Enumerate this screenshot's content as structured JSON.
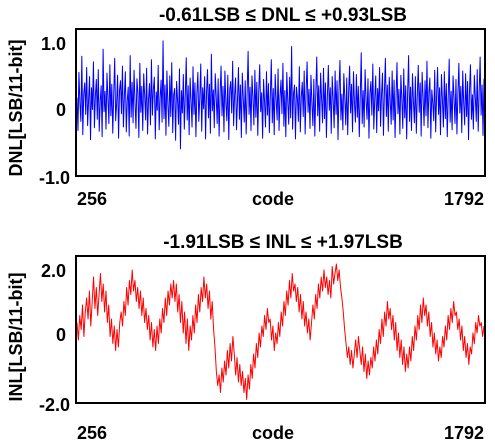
{
  "chart_data": [
    {
      "type": "line",
      "title": "-0.61LSB ≤ DNL ≤ +0.93LSB",
      "xlabel": "code",
      "ylabel": "DNL[LSB/11-bit]",
      "xlim": [
        256,
        1792
      ],
      "ylim": [
        -1.0,
        1.1
      ],
      "x_tick_labels": [
        "256",
        "1792"
      ],
      "y_tick_labels": [
        "1.0",
        "0",
        "-1.0"
      ],
      "y_ticks": [
        1.0,
        0,
        -1.0
      ],
      "grid": false,
      "series": [
        {
          "color": "#0000ff",
          "x_start": 256,
          "x_end": 1792,
          "values": [
            0.12,
            -0.35,
            0.48,
            0.05,
            -0.22,
            0.71,
            -0.41,
            0.18,
            0.33,
            -0.12,
            0.55,
            -0.28,
            0.09,
            0.42,
            -0.48,
            0.26,
            -0.05,
            0.63,
            -0.31,
            0.14,
            0.38,
            -0.19,
            0.52,
            -0.36,
            0.07,
            0.29,
            -0.44,
            0.81,
            -0.08,
            0.21,
            -0.33,
            0.47,
            0.11,
            -0.25,
            0.59,
            -0.14,
            0.31,
            -0.39,
            0.17,
            0.68,
            -0.21,
            0.04,
            0.44,
            -0.46,
            0.23,
            0.36,
            -0.11,
            0.57,
            -0.3,
            0.13,
            0.49,
            -0.37,
            0.08,
            0.27,
            -0.43,
            0.72,
            -0.16,
            0.34,
            -0.24,
            0.51,
            0.06,
            -0.32,
            0.39,
            0.19,
            -0.45,
            0.61,
            -0.09,
            0.28,
            -0.35,
            0.46,
            0.15,
            -0.2,
            0.54,
            -0.4,
            0.1,
            0.32,
            -0.27,
            0.66,
            -0.13,
            0.24,
            0.41,
            -0.47,
            0.2,
            -0.06,
            0.58,
            -0.34,
            0.12,
            0.37,
            -0.23,
            0.93,
            -0.18,
            0.3,
            -0.42,
            0.5,
            0.03,
            -0.29,
            0.43,
            -0.15,
            0.62,
            -0.38,
            0.16,
            0.25,
            -0.49,
            0.35,
            0.09,
            -0.26,
            0.53,
            -0.61,
            0.22,
            -0.1,
            0.45,
            -0.33,
            0.14,
            0.69,
            -0.2,
            0.29,
            -0.41,
            0.4,
            0.07,
            -0.3,
            0.56,
            -0.12,
            0.33,
            -0.44,
            0.18,
            0.48,
            -0.22,
            0.11,
            0.6,
            -0.36,
            0.26,
            -0.04,
            0.42,
            -0.47,
            0.2,
            0.52,
            -0.17,
            0.31,
            -0.39,
            0.74,
            -0.07,
            0.23,
            -0.31,
            0.46,
            0.13,
            -0.25,
            0.39,
            -0.43,
            0.17,
            0.57,
            -0.14,
            0.28,
            -0.37,
            0.5,
            0.05,
            -0.21,
            0.44,
            -0.48,
            0.24,
            0.35,
            -0.1,
            0.64,
            -0.28,
            0.15,
            0.4,
            -0.34,
            0.08,
            0.55,
            -0.19,
            0.3,
            -0.45,
            0.47,
            0.1,
            -0.23,
            0.36,
            -0.4,
            0.2,
            0.78,
            -0.12,
            0.27,
            -0.35,
            0.43,
            0.12,
            -0.27,
            0.51,
            -0.16,
            0.34,
            -0.42,
            0.21,
            0.59,
            -0.08,
            0.19,
            -0.46,
            0.38,
            0.06,
            -0.3,
            0.49,
            -0.13,
            0.32,
            -0.38,
            0.16,
            0.66,
            -0.24,
            0.25,
            -0.41,
            0.45,
            0.09,
            -0.2,
            0.53,
            -0.35,
            0.14,
            0.37,
            -0.11,
            0.61,
            -0.29,
            0.22,
            -0.44,
            0.48,
            0.07,
            -0.26,
            0.41,
            -0.17,
            0.85,
            -0.33,
            0.18,
            0.3,
            -0.47,
            0.27,
            0.11,
            -0.22,
            0.56,
            -0.37,
            0.13,
            0.34,
            -0.15,
            0.5,
            -0.4,
            0.21,
            0.63,
            -0.09,
            0.24,
            -0.32,
            0.44,
            0.04,
            -0.28,
            0.38,
            -0.43,
            0.19,
            0.7,
            -0.14,
            0.29,
            -0.36,
            0.47,
            0.1,
            -0.24,
            0.54,
            -0.18,
            0.33,
            -0.45,
            0.15,
            0.58,
            -0.06,
            0.26,
            -0.39,
            0.42,
            0.08,
            -0.31,
            0.5,
            -0.12,
            0.36,
            -0.48,
            0.23,
            0.65,
            -0.2,
            0.17,
            -0.34,
            0.46,
            0.12,
            -0.27,
            0.4,
            -0.41,
            0.2,
            0.57,
            -0.1,
            0.31,
            -0.37,
            0.49,
            0.05,
            -0.23,
            0.45,
            -0.16,
            0.28,
            -0.44,
            0.14,
            0.76,
            -0.25,
            0.22,
            -0.3,
            0.52,
            0.09,
            -0.19,
            0.39,
            -0.46,
            0.18,
            0.35,
            -0.13,
            0.6,
            -0.33,
            0.11,
            0.43,
            -0.38,
            0.25,
            -0.07,
            0.55,
            -0.29,
            0.16,
            0.47,
            -0.42,
            0.21,
            0.68,
            -0.15,
            0.3,
            -0.36,
            0.41,
            0.07,
            -0.26,
            0.5,
            -0.2,
            0.37,
            -0.45,
            0.13,
            0.62,
            -0.11,
            0.24,
            -0.4,
            0.44,
            0.1,
            -0.32,
            0.53,
            -0.17,
            0.29,
            -0.47,
            0.19,
            0.72,
            -0.22,
            0.27,
            -0.35,
            0.46,
            0.06,
            -0.24,
            0.42,
            -0.39,
            0.15,
            0.58,
            -0.09,
            0.33,
            -0.43,
            0.48,
            0.12,
            -0.28,
            0.36,
            -0.14,
            0.64,
            -0.31,
            0.2,
            0.4,
            -0.46,
            0.23,
            0.05,
            -0.21,
            0.51,
            -0.37,
            0.17,
            0.55,
            -0.12,
            0.26,
            -0.41,
            0.45,
            0.08,
            -0.3,
            0.49,
            -0.18,
            0.32,
            -0.44,
            0.14,
            0.67,
            -0.23,
            0.21,
            -0.34,
            0.43,
            0.11,
            -0.25,
            0.38,
            -0.4,
            0.18,
            0.61,
            -0.1,
            0.28,
            -0.38,
            0.5,
            0.04,
            -0.27,
            0.46,
            -0.15,
            0.35,
            -0.48,
            0.22,
            0.59,
            -0.19,
            0.16,
            -0.33,
            0.44,
            0.13,
            -0.22,
            0.52,
            -0.36,
            0.2,
            0.7,
            -0.13,
            0.3,
            -0.42,
            0.39
          ]
        }
      ]
    },
    {
      "type": "line",
      "title": "-1.91LSB ≤ INL ≤ +1.97LSB",
      "xlabel": "code",
      "ylabel": "INL[LSB/11-bit]",
      "xlim": [
        256,
        1792
      ],
      "ylim": [
        -2.0,
        2.2
      ],
      "x_tick_labels": [
        "256",
        "1792"
      ],
      "y_tick_labels": [
        "2.0",
        "0",
        "-2.0"
      ],
      "y_ticks": [
        2.0,
        0,
        -2.0
      ],
      "grid": false,
      "series": [
        {
          "color": "#ff0000",
          "x_start": 256,
          "x_end": 1792,
          "values": [
            0.3,
            -0.2,
            0.5,
            0.1,
            0.8,
            -0.1,
            0.6,
            1.0,
            0.4,
            1.2,
            0.2,
            0.9,
            1.6,
            0.7,
            1.3,
            0.5,
            1.1,
            1.7,
            0.9,
            1.4,
            0.6,
            1.2,
            0.3,
            0.8,
            -0.1,
            0.4,
            -0.3,
            0.2,
            -0.5,
            0.1,
            -0.4,
            0.3,
            0.6,
            0.2,
            0.9,
            0.5,
            1.3,
            0.8,
            1.5,
            1.1,
            1.8,
            1.2,
            1.5,
            0.9,
            1.3,
            0.7,
            1.2,
            0.5,
            1.0,
            0.3,
            0.7,
            0.1,
            0.5,
            -0.2,
            0.3,
            -0.4,
            0.1,
            -0.5,
            0.2,
            -0.3,
            0.4,
            0.0,
            0.7,
            0.3,
            1.0,
            0.5,
            1.2,
            0.8,
            1.4,
            1.0,
            1.5,
            0.9,
            1.4,
            0.6,
            1.1,
            0.3,
            0.9,
            0.0,
            0.6,
            -0.3,
            0.4,
            -0.5,
            0.2,
            -0.2,
            0.5,
            0.0,
            0.8,
            0.3,
            1.1,
            0.6,
            1.3,
            0.9,
            1.6,
            1.0,
            1.4,
            0.7,
            1.2,
            0.4,
            0.9,
            0.1,
            -0.4,
            -1.1,
            -1.5,
            -1.2,
            -1.7,
            -1.0,
            -1.4,
            -0.8,
            -1.2,
            -0.5,
            -1.0,
            -0.3,
            -0.8,
            -0.1,
            -0.6,
            -1.2,
            -0.7,
            -1.4,
            -0.9,
            -1.5,
            -1.1,
            -1.7,
            -1.3,
            -1.9,
            -1.2,
            -1.6,
            -0.9,
            -1.3,
            -0.6,
            -1.0,
            -0.3,
            -0.7,
            0.0,
            -0.4,
            0.2,
            -0.1,
            0.5,
            0.1,
            0.7,
            0.3,
            0.4,
            -0.2,
            0.2,
            -0.5,
            0.0,
            -0.3,
            0.3,
            -0.1,
            0.6,
            0.2,
            0.9,
            0.5,
            1.2,
            0.8,
            1.5,
            1.0,
            1.7,
            1.2,
            1.4,
            0.9,
            1.3,
            0.6,
            1.1,
            0.4,
            0.9,
            0.2,
            0.6,
            0.0,
            0.4,
            -0.2,
            0.3,
            0.8,
            0.4,
            1.1,
            0.7,
            1.4,
            1.0,
            1.6,
            1.2,
            1.8,
            1.3,
            1.6,
            1.1,
            1.5,
            1.0,
            1.9,
            1.4,
            1.7,
            1.97,
            1.5,
            1.8,
            1.3,
            1.0,
            0.6,
            0.1,
            -0.3,
            -0.7,
            -0.4,
            -0.9,
            -0.5,
            -1.0,
            -0.6,
            -0.2,
            -0.7,
            -0.1,
            -0.5,
            -0.9,
            -0.4,
            -1.1,
            -0.6,
            -1.3,
            -0.8,
            -1.2,
            -0.7,
            -1.0,
            -0.4,
            -0.8,
            -0.2,
            -0.6,
            0.1,
            -0.3,
            0.4,
            -0.1,
            0.6,
            0.2,
            0.9,
            0.4,
            0.7,
            0.1,
            0.5,
            -0.2,
            0.3,
            -0.5,
            0.0,
            -0.7,
            -0.2,
            -0.9,
            -0.4,
            -1.1,
            -0.6,
            -1.0,
            -0.4,
            -0.8,
            -0.1,
            -0.5,
            0.2,
            -0.2,
            0.5,
            0.1,
            0.8,
            0.3,
            1.0,
            0.5,
            0.8,
            0.2,
            0.6,
            -0.1,
            0.3,
            -0.4,
            0.0,
            -0.6,
            -0.2,
            -0.8,
            -0.4,
            -0.7,
            -0.1,
            -0.4,
            0.2,
            -0.2,
            0.5,
            0.1,
            0.7,
            0.3,
            0.9,
            0.5,
            0.6,
            0.1,
            0.4,
            -0.2,
            0.2,
            -0.5,
            -0.1,
            -0.7,
            -0.3,
            -0.9,
            -0.4,
            -0.6,
            0.0,
            -0.3,
            0.3,
            0.0,
            0.5,
            0.2,
            0.3,
            -0.1,
            0.2
          ]
        }
      ]
    }
  ]
}
